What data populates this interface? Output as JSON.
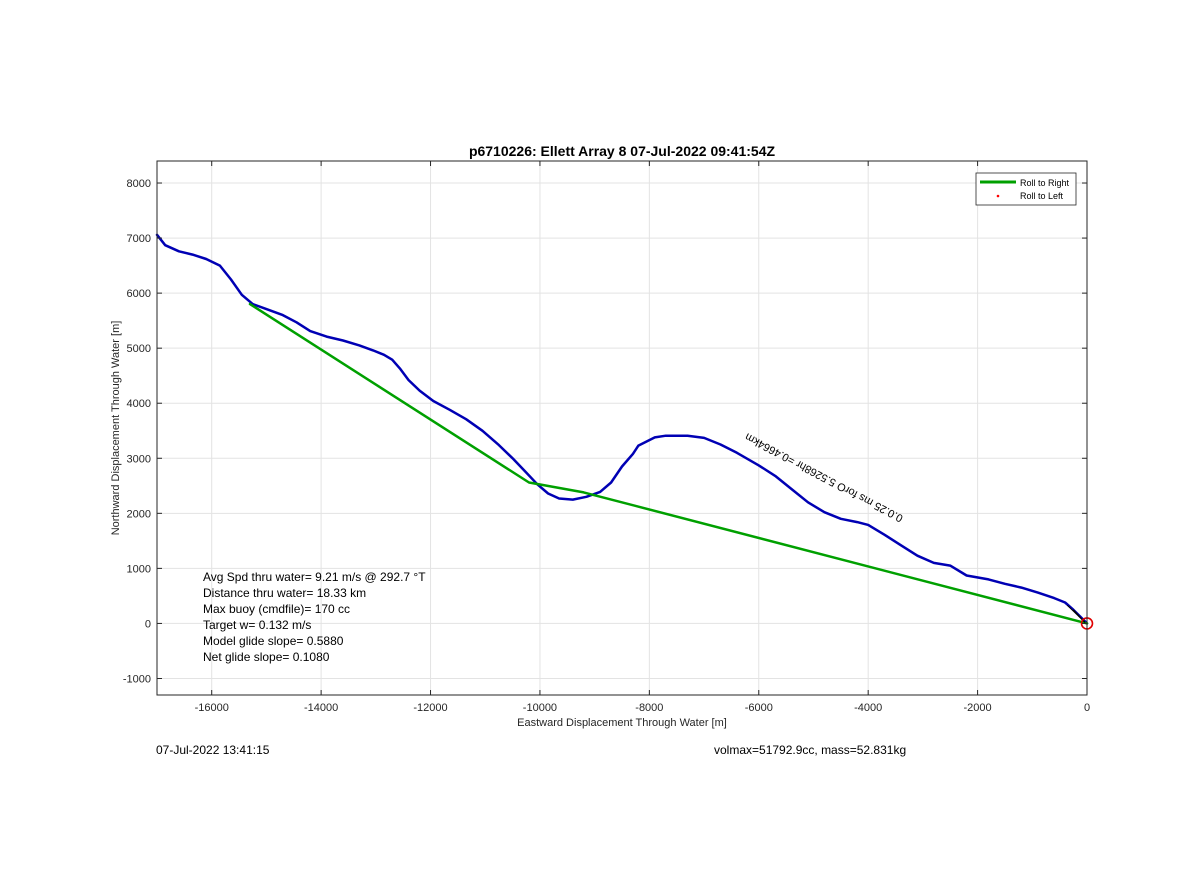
{
  "chart_data": {
    "type": "line",
    "title": "p6710226: Ellett Array 8 07-Jul-2022 09:41:54Z",
    "xlabel": "Eastward Displacement Through Water [m]",
    "ylabel": "Northward Displacement Through Water [m]",
    "xlim": [
      -17000,
      0
    ],
    "ylim": [
      -1300,
      8400
    ],
    "xticks": [
      -16000,
      -14000,
      -12000,
      -10000,
      -8000,
      -6000,
      -4000,
      -2000,
      0
    ],
    "yticks": [
      -1000,
      0,
      1000,
      2000,
      3000,
      4000,
      5000,
      6000,
      7000,
      8000
    ],
    "grid": true,
    "legend_position": "top-right",
    "legend": [
      {
        "label": "Roll to Right",
        "color": "#00a000",
        "style": "line"
      },
      {
        "label": "Roll to Left",
        "color": "#ff0000",
        "style": "dot"
      }
    ],
    "series": [
      {
        "color": "#0000b4",
        "points": [
          [
            -17000,
            7060
          ],
          [
            -16850,
            6870
          ],
          [
            -16600,
            6760
          ],
          [
            -16350,
            6700
          ],
          [
            -16100,
            6620
          ],
          [
            -15850,
            6500
          ],
          [
            -15650,
            6250
          ],
          [
            -15450,
            5970
          ],
          [
            -15250,
            5800
          ],
          [
            -15000,
            5710
          ],
          [
            -14700,
            5600
          ],
          [
            -14450,
            5470
          ],
          [
            -14200,
            5310
          ],
          [
            -13900,
            5210
          ],
          [
            -13600,
            5140
          ],
          [
            -13300,
            5050
          ],
          [
            -13050,
            4960
          ],
          [
            -12850,
            4880
          ],
          [
            -12700,
            4790
          ],
          [
            -12550,
            4620
          ],
          [
            -12400,
            4420
          ],
          [
            -12200,
            4230
          ],
          [
            -11950,
            4040
          ],
          [
            -11650,
            3880
          ],
          [
            -11350,
            3710
          ],
          [
            -11050,
            3500
          ],
          [
            -10750,
            3240
          ],
          [
            -10500,
            3000
          ],
          [
            -10250,
            2740
          ],
          [
            -10050,
            2530
          ],
          [
            -9850,
            2360
          ],
          [
            -9650,
            2270
          ],
          [
            -9400,
            2250
          ],
          [
            -9150,
            2300
          ],
          [
            -8900,
            2390
          ],
          [
            -8700,
            2560
          ],
          [
            -8500,
            2850
          ],
          [
            -8300,
            3080
          ],
          [
            -8200,
            3230
          ],
          [
            -7900,
            3380
          ],
          [
            -7700,
            3410
          ],
          [
            -7300,
            3410
          ],
          [
            -7000,
            3370
          ],
          [
            -6700,
            3250
          ],
          [
            -6400,
            3100
          ],
          [
            -6000,
            2870
          ],
          [
            -5700,
            2680
          ],
          [
            -5400,
            2440
          ],
          [
            -5100,
            2200
          ],
          [
            -4800,
            2020
          ],
          [
            -4500,
            1900
          ],
          [
            -4200,
            1840
          ],
          [
            -4000,
            1790
          ],
          [
            -3700,
            1610
          ],
          [
            -3400,
            1420
          ],
          [
            -3100,
            1230
          ],
          [
            -2800,
            1100
          ],
          [
            -2500,
            1050
          ],
          [
            -2200,
            870
          ],
          [
            -1800,
            800
          ],
          [
            -1500,
            720
          ],
          [
            -1200,
            650
          ],
          [
            -900,
            560
          ],
          [
            -600,
            460
          ],
          [
            -400,
            380
          ],
          [
            -250,
            250
          ],
          [
            -120,
            120
          ],
          [
            0,
            0
          ]
        ]
      },
      {
        "color": "#00a000",
        "points": [
          [
            -15300,
            5800
          ],
          [
            -10200,
            2560
          ],
          [
            -9200,
            2380
          ],
          [
            0,
            0
          ]
        ]
      }
    ],
    "annotations": [
      {
        "text": "Avg Spd thru water=  9.21 m/s @ 292.7 °T"
      },
      {
        "text": "Distance thru water= 18.33 km"
      },
      {
        "text": "Max buoy (cmdfile)= 170 cc"
      },
      {
        "text": "Target w= 0.132 m/s"
      },
      {
        "text": "Model glide slope= 0.5880"
      },
      {
        "text": "Net glide slope= 0.1080"
      }
    ],
    "vector_label": {
      "text": "0.0.25 ms forO 5.5268hr =0.4664km",
      "x": -3350,
      "y": 1950,
      "angle": 208
    }
  },
  "footer": {
    "timestamp": "07-Jul-2022 13:41:15",
    "mass_info": "volmax=51792.9cc, mass=52.831kg"
  }
}
